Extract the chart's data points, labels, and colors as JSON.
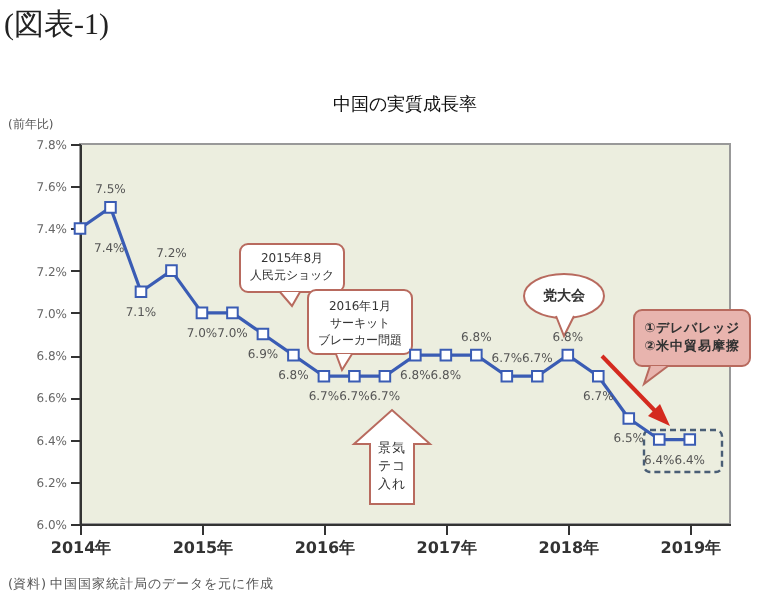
{
  "chart_data": {
    "type": "line",
    "title": "中国の実質成長率",
    "ylabel": "(前年比)",
    "annotations": [
      "(図表-1)",
      "2015年8月人民元ショック",
      "2016年1月サーキットブレーカー問題",
      "党大会",
      "①デレバレッジ\n②米中貿易摩擦",
      "景気テコ入れ",
      "(資料) 中国国家統計局のデータを元に作成"
    ],
    "x": [
      2014,
      2014.25,
      2014.5,
      2014.75,
      2015,
      2015.25,
      2015.5,
      2015.75,
      2016,
      2016.25,
      2016.5,
      2016.75,
      2017,
      2017.25,
      2017.5,
      2017.75,
      2018,
      2018.25,
      2018.5,
      2018.75,
      2019
    ],
    "series": [
      {
        "color": "#3a5cb4",
        "values": [
          7.4,
          7.5,
          7.1,
          7.2,
          7.0,
          7.0,
          6.9,
          6.8,
          6.7,
          6.7,
          6.7,
          6.8,
          6.8,
          6.8,
          6.7,
          6.7,
          6.8,
          6.7,
          6.5,
          6.4,
          6.4
        ],
        "value_labels": [
          "7.4%",
          "7.5%",
          "7.1%",
          "7.2%",
          "7.0%",
          "7.0%",
          "6.9%",
          "6.8%",
          "6.7%",
          "6.7%",
          "6.7%",
          "6.8%",
          "6.8%",
          "6.8%",
          "6.7%",
          "6.7%",
          "6.8%",
          "6.7%",
          "6.5%",
          "6.4%",
          "6.4%"
        ]
      }
    ],
    "xlim": [
      2014,
      2019.33
    ],
    "xticks": [
      {
        "value": 2014,
        "label": "2014年"
      },
      {
        "value": 2015,
        "label": "2015年"
      },
      {
        "value": 2016,
        "label": "2016年"
      },
      {
        "value": 2017,
        "label": "2017年"
      },
      {
        "value": 2018,
        "label": "2018年"
      },
      {
        "value": 2019,
        "label": "2019年"
      }
    ],
    "ylim": [
      6.0,
      7.8
    ],
    "yticks": [
      {
        "value": 6.0,
        "label": "6.0%"
      },
      {
        "value": 6.2,
        "label": "6.2%"
      },
      {
        "value": 6.4,
        "label": "6.4%"
      },
      {
        "value": 6.6,
        "label": "6.6%"
      },
      {
        "value": 6.8,
        "label": "6.8%"
      },
      {
        "value": 7.0,
        "label": "7.0%"
      },
      {
        "value": 7.2,
        "label": "7.2%"
      },
      {
        "value": 7.4,
        "label": "7.4%"
      },
      {
        "value": 7.6,
        "label": "7.6%"
      },
      {
        "value": 7.8,
        "label": "7.8%"
      }
    ],
    "marker": "square",
    "line_style": "solid",
    "grid": false
  }
}
